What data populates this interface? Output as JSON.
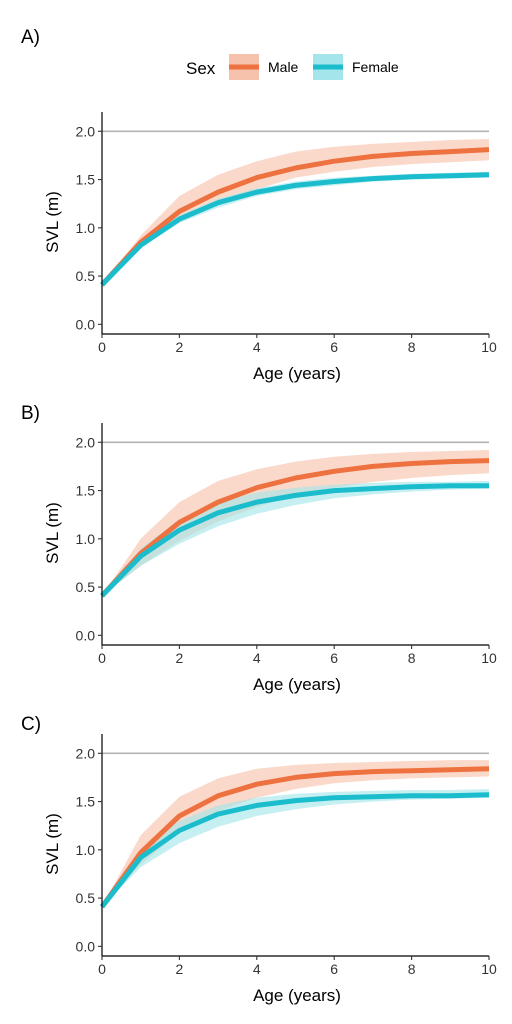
{
  "legend": {
    "title": "Sex",
    "items": [
      {
        "label": "Male",
        "color": "#ee7140",
        "band_color": "#f7c2ab"
      },
      {
        "label": "Female",
        "color": "#1bbdcd",
        "band_color": "#a3e5ea"
      }
    ]
  },
  "chart_data": [
    {
      "panel": "A)",
      "type": "line",
      "xlabel": "Age (years)",
      "ylabel": "SVL (m)",
      "xlim": [
        0,
        10
      ],
      "ylim": [
        -0.1,
        2.2
      ],
      "xticks": [
        "0",
        "2",
        "4",
        "6",
        "8",
        "10"
      ],
      "yticks": [
        "0.0",
        "0.5",
        "1.0",
        "1.5",
        "2.0"
      ],
      "reference_line": 2.0,
      "x": [
        0,
        1,
        2,
        3,
        4,
        5,
        6,
        7,
        8,
        9,
        10
      ],
      "series": [
        {
          "name": "Male",
          "values": [
            0.41,
            0.85,
            1.17,
            1.37,
            1.52,
            1.62,
            1.69,
            1.74,
            1.77,
            1.79,
            1.81
          ],
          "lower": [
            0.41,
            0.8,
            1.06,
            1.25,
            1.4,
            1.52,
            1.58,
            1.63,
            1.66,
            1.68,
            1.7
          ],
          "upper": [
            0.41,
            0.92,
            1.33,
            1.55,
            1.69,
            1.79,
            1.84,
            1.87,
            1.89,
            1.91,
            1.92
          ]
        },
        {
          "name": "Female",
          "values": [
            0.41,
            0.82,
            1.09,
            1.26,
            1.37,
            1.44,
            1.48,
            1.51,
            1.53,
            1.54,
            1.55
          ],
          "lower": [
            0.41,
            0.79,
            1.05,
            1.21,
            1.33,
            1.4,
            1.44,
            1.48,
            1.5,
            1.51,
            1.52
          ],
          "upper": [
            0.41,
            0.85,
            1.13,
            1.3,
            1.41,
            1.48,
            1.52,
            1.54,
            1.56,
            1.57,
            1.58
          ]
        }
      ]
    },
    {
      "panel": "B)",
      "type": "line",
      "xlabel": "Age (years)",
      "ylabel": "SVL (m)",
      "xlim": [
        0,
        10
      ],
      "ylim": [
        -0.1,
        2.2
      ],
      "xticks": [
        "0",
        "2",
        "4",
        "6",
        "8",
        "10"
      ],
      "yticks": [
        "0.0",
        "0.5",
        "1.0",
        "1.5",
        "2.0"
      ],
      "reference_line": 2.0,
      "x": [
        0,
        1,
        2,
        3,
        4,
        5,
        6,
        7,
        8,
        9,
        10
      ],
      "series": [
        {
          "name": "Male",
          "values": [
            0.41,
            0.85,
            1.17,
            1.38,
            1.53,
            1.63,
            1.7,
            1.75,
            1.78,
            1.8,
            1.81
          ],
          "lower": [
            0.41,
            0.72,
            0.98,
            1.18,
            1.33,
            1.45,
            1.53,
            1.59,
            1.63,
            1.66,
            1.68
          ],
          "upper": [
            0.41,
            1.0,
            1.38,
            1.6,
            1.72,
            1.8,
            1.85,
            1.88,
            1.9,
            1.91,
            1.92
          ]
        },
        {
          "name": "Female",
          "values": [
            0.41,
            0.82,
            1.09,
            1.27,
            1.38,
            1.45,
            1.5,
            1.52,
            1.54,
            1.55,
            1.55
          ],
          "lower": [
            0.41,
            0.72,
            0.95,
            1.13,
            1.26,
            1.35,
            1.42,
            1.46,
            1.49,
            1.51,
            1.52
          ],
          "upper": [
            0.41,
            0.9,
            1.2,
            1.38,
            1.48,
            1.53,
            1.56,
            1.58,
            1.59,
            1.59,
            1.6
          ]
        }
      ]
    },
    {
      "panel": "C)",
      "type": "line",
      "xlabel": "Age (years)",
      "ylabel": "SVL (m)",
      "xlim": [
        0,
        10
      ],
      "ylim": [
        -0.1,
        2.2
      ],
      "xticks": [
        "0",
        "2",
        "4",
        "6",
        "8",
        "10"
      ],
      "yticks": [
        "0.0",
        "0.5",
        "1.0",
        "1.5",
        "2.0"
      ],
      "reference_line": 2.0,
      "x": [
        0,
        1,
        2,
        3,
        4,
        5,
        6,
        7,
        8,
        9,
        10
      ],
      "series": [
        {
          "name": "Male",
          "values": [
            0.41,
            0.97,
            1.35,
            1.56,
            1.68,
            1.75,
            1.79,
            1.81,
            1.82,
            1.83,
            1.84
          ],
          "lower": [
            0.41,
            0.85,
            1.18,
            1.4,
            1.54,
            1.63,
            1.69,
            1.72,
            1.74,
            1.75,
            1.76
          ],
          "upper": [
            0.41,
            1.15,
            1.55,
            1.74,
            1.84,
            1.88,
            1.9,
            1.91,
            1.92,
            1.93,
            1.93
          ]
        },
        {
          "name": "Female",
          "values": [
            0.41,
            0.92,
            1.2,
            1.37,
            1.46,
            1.51,
            1.54,
            1.55,
            1.56,
            1.56,
            1.57
          ],
          "lower": [
            0.41,
            0.82,
            1.07,
            1.24,
            1.35,
            1.42,
            1.47,
            1.5,
            1.52,
            1.53,
            1.54
          ],
          "upper": [
            0.41,
            1.0,
            1.3,
            1.46,
            1.54,
            1.58,
            1.6,
            1.61,
            1.62,
            1.62,
            1.63
          ]
        }
      ]
    }
  ]
}
